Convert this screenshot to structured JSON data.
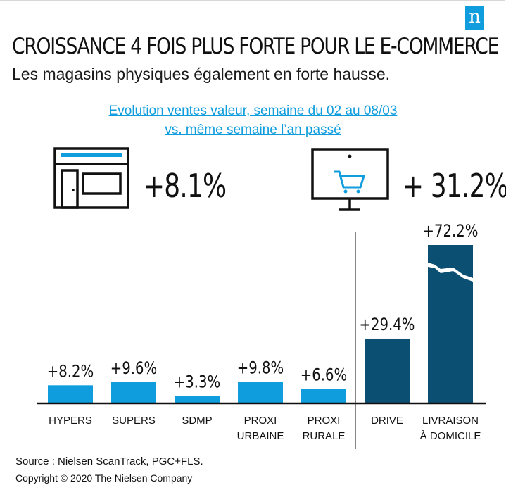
{
  "brand": {
    "logo_letter": "n",
    "accent": "#0f9ddd",
    "dark": "#0b4f72"
  },
  "header": {
    "title": "CROISSANCE 4 FOIS PLUS FORTE POUR LE E-COMMERCE",
    "subtitle": "Les magasins physiques également en forte hausse.",
    "period_line1": "Evolution ventes valeur, semaine du 02 au 08/03",
    "period_line2": "vs. même semaine l’an passé"
  },
  "summary": {
    "store": {
      "icon": "store-icon",
      "value": "+8.1%"
    },
    "online": {
      "icon": "shopping-cart-monitor-icon",
      "value": "+ 31.2%"
    }
  },
  "chart_data": {
    "type": "bar",
    "categories": [
      "HYPERS",
      "SUPERS",
      "SDMP",
      "PROXI URBAINE",
      "PROXI RURALE",
      "DRIVE",
      "LIVRAISON À DOMICILE"
    ],
    "category_lines": [
      [
        "HYPERS"
      ],
      [
        "SUPERS"
      ],
      [
        "SDMP"
      ],
      [
        "PROXI",
        "URBAINE"
      ],
      [
        "PROXI",
        "RURALE"
      ],
      [
        "DRIVE"
      ],
      [
        "LIVRAISON",
        "À DOMICILE"
      ]
    ],
    "values": [
      8.2,
      9.6,
      3.3,
      9.8,
      6.6,
      29.4,
      72.2
    ],
    "labels": [
      "+8.2%",
      "+9.6%",
      "+3.3%",
      "+9.8%",
      "+6.6%",
      "+29.4%",
      "+72.2%"
    ],
    "groups": [
      "store",
      "store",
      "store",
      "store",
      "store",
      "online",
      "online"
    ],
    "colors": {
      "store": "#0f9ddd",
      "online": "#0b4f72"
    },
    "broken_axis_bar": "LIVRAISON À DOMICILE"
  },
  "footer": {
    "source": "Source : Nielsen ScanTrack, PGC+FLS.",
    "copyright": "Copyright © 2020 The Nielsen Company"
  }
}
